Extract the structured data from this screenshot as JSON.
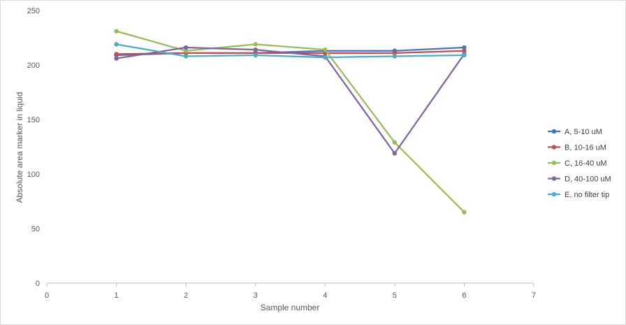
{
  "chart_data": {
    "type": "line",
    "title": "",
    "xlabel": "Sample number",
    "ylabel": "Absolute area marker in liquid",
    "xlim": [
      0,
      7
    ],
    "ylim": [
      0,
      250
    ],
    "xticks": [
      0,
      1,
      2,
      3,
      4,
      5,
      6,
      7
    ],
    "yticks": [
      0,
      50,
      100,
      150,
      200,
      250
    ],
    "grid": false,
    "legend_position": "right",
    "x": [
      1,
      2,
      3,
      4,
      5,
      6
    ],
    "series": [
      {
        "name": "A, 5-10 uM",
        "color": "#4472C4",
        "values": [
          209,
          211,
          211,
          213,
          213,
          216
        ]
      },
      {
        "name": "B, 10-16 uM",
        "color": "#C0504D",
        "values": [
          210,
          211,
          211,
          211,
          211,
          213
        ]
      },
      {
        "name": "C, 16-40 uM",
        "color": "#9BBB59",
        "values": [
          231,
          213,
          219,
          214,
          129,
          65
        ]
      },
      {
        "name": "D, 40-100 uM",
        "color": "#8064A2",
        "values": [
          206,
          216,
          214,
          208,
          119,
          210
        ]
      },
      {
        "name": "E, no filter tip",
        "color": "#4BACC6",
        "values": [
          219,
          208,
          209,
          207,
          208,
          209
        ]
      }
    ]
  }
}
